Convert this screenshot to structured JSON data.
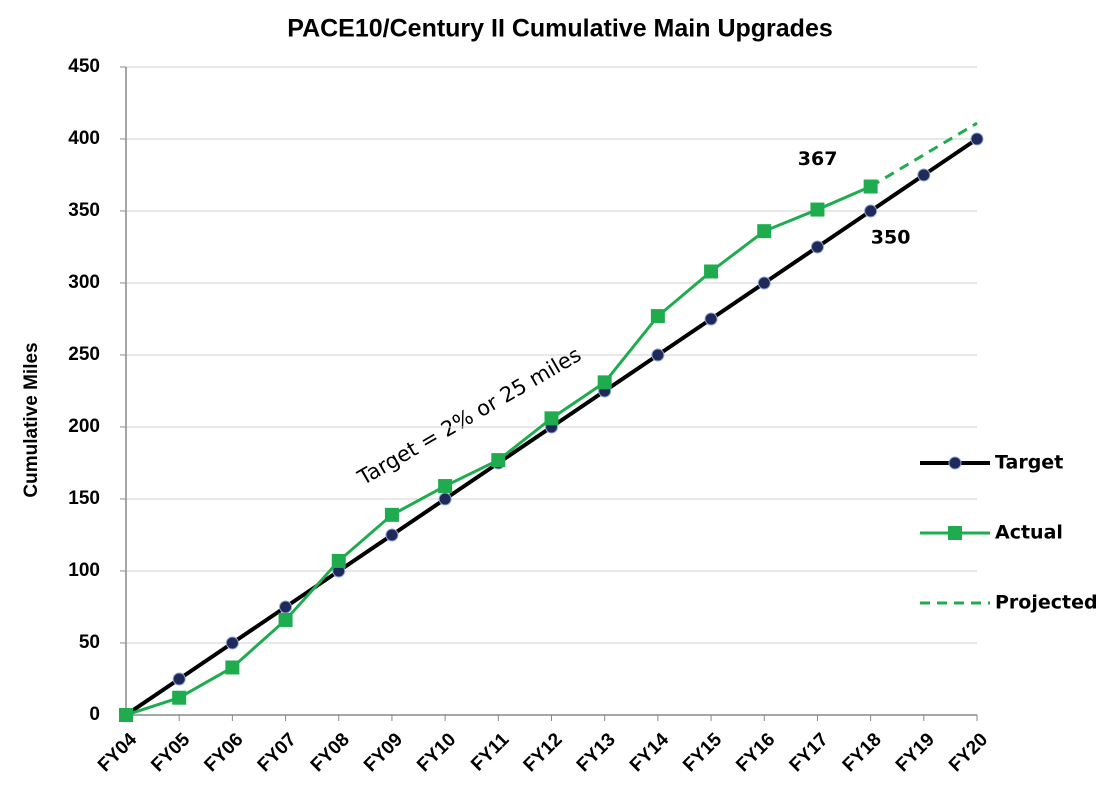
{
  "chart_data": {
    "type": "line",
    "title": "PACE10/Century II Cumulative Main Upgrades",
    "y_label": "Cumulative Miles",
    "annotation": "Target = 2% or 25 miles",
    "categories": [
      "FY04",
      "FY05",
      "FY06",
      "FY07",
      "FY08",
      "FY09",
      "FY10",
      "FY11",
      "FY12",
      "FY13",
      "FY14",
      "FY15",
      "FY16",
      "FY17",
      "FY18",
      "FY19",
      "FY20"
    ],
    "series": [
      {
        "name": "Target",
        "color": "#000000",
        "marker": "circle",
        "marker_color": "#1f2a5a",
        "dashed": false,
        "data_labels": [
          14
        ],
        "values": [
          0,
          25,
          50,
          75,
          100,
          125,
          150,
          175,
          200,
          225,
          250,
          275,
          300,
          325,
          350,
          375,
          400
        ]
      },
      {
        "name": "Actual",
        "color": "#1fac4f",
        "marker": "square",
        "marker_color": "#1fac4f",
        "dashed": false,
        "data_labels": [
          14
        ],
        "values": [
          0,
          12,
          33,
          66,
          107,
          139,
          159,
          177,
          206,
          231,
          277,
          308,
          336,
          351,
          367,
          null,
          null
        ]
      },
      {
        "name": "Projected",
        "color": "#1fac4f",
        "marker": "none",
        "marker_color": "#1fac4f",
        "dashed": true,
        "data_labels": [],
        "values": [
          null,
          null,
          null,
          null,
          null,
          null,
          null,
          null,
          null,
          null,
          null,
          null,
          null,
          null,
          367,
          389,
          411
        ]
      }
    ],
    "ylim": [
      0,
      450
    ],
    "yticks": [
      0,
      50,
      100,
      150,
      200,
      250,
      300,
      350,
      400,
      450
    ],
    "grid": true,
    "legend": "right"
  }
}
